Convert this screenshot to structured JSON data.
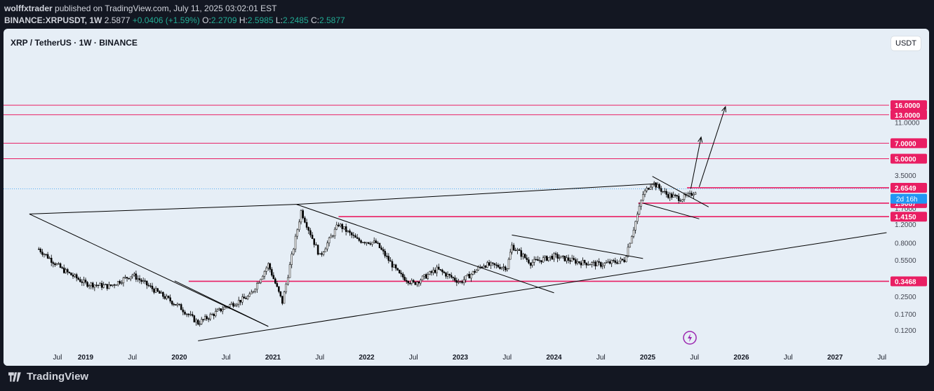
{
  "header": {
    "author": "wolffxtrader",
    "published": "published on TradingView.com, July 11, 2025 03:02:01 EST",
    "symbol": "BINANCE:XRPUSDT, 1W",
    "last": "2.5877",
    "change": "+0.0406 (+1.59%)",
    "o_label": "O:",
    "o": "2.2709",
    "h_label": "H:",
    "h": "2.5985",
    "l_label": "L:",
    "l": "2.2485",
    "c_label": "C:",
    "c": "2.5877"
  },
  "chart": {
    "title": "XRP / TetherUS · 1W · BINANCE",
    "currency_button": "USDT"
  },
  "footer": {
    "brand": "TradingView"
  },
  "colors": {
    "background": "#e6eef6",
    "level": "#e91e63",
    "candle": "#000000",
    "price_label": "#2196f3",
    "outer": "#131722"
  },
  "chart_data": {
    "type": "candlestick",
    "scale": "log",
    "x_ticks": [
      "Jul",
      "2019",
      "Jul",
      "2020",
      "Jul",
      "2021",
      "Jul",
      "2022",
      "Jul",
      "2023",
      "Jul",
      "2024",
      "Jul",
      "2025",
      "Jul",
      "2026",
      "Jul",
      "2027",
      "Jul"
    ],
    "y_ticks": [
      "11.0000",
      "3.5000",
      "1.7000",
      "1.2000",
      "0.8000",
      "0.5500",
      "0.2500",
      "0.1700",
      "0.1200"
    ],
    "levels": [
      {
        "value": 16.0,
        "label": "16.0000"
      },
      {
        "value": 13.0,
        "label": "13.0000"
      },
      {
        "value": 7.0,
        "label": "7.0000"
      },
      {
        "value": 5.0,
        "label": "5.0000"
      },
      {
        "value": 2.6549,
        "label": "2.6549"
      },
      {
        "value": 1.415,
        "label": "1.4150"
      },
      {
        "value": 0.3468,
        "label": "0.3468"
      }
    ],
    "current_price": {
      "value": 2.5877,
      "countdown": "2d 16h"
    },
    "hidden_level": {
      "value": 1.9,
      "label": "1.9087"
    },
    "weekly_closes_approx": [
      [
        2018.5,
        0.7
      ],
      [
        2018.75,
        0.45
      ],
      [
        2019.0,
        0.33
      ],
      [
        2019.25,
        0.31
      ],
      [
        2019.5,
        0.4
      ],
      [
        2019.75,
        0.28
      ],
      [
        2020.0,
        0.2
      ],
      [
        2020.2,
        0.14
      ],
      [
        2020.5,
        0.2
      ],
      [
        2020.75,
        0.25
      ],
      [
        2020.95,
        0.5
      ],
      [
        2021.1,
        0.22
      ],
      [
        2021.3,
        1.6
      ],
      [
        2021.5,
        0.6
      ],
      [
        2021.7,
        1.2
      ],
      [
        2021.9,
        0.85
      ],
      [
        2022.1,
        0.8
      ],
      [
        2022.35,
        0.4
      ],
      [
        2022.5,
        0.33
      ],
      [
        2022.75,
        0.45
      ],
      [
        2023.0,
        0.34
      ],
      [
        2023.25,
        0.5
      ],
      [
        2023.5,
        0.47
      ],
      [
        2023.55,
        0.75
      ],
      [
        2023.75,
        0.52
      ],
      [
        2024.0,
        0.6
      ],
      [
        2024.25,
        0.53
      ],
      [
        2024.5,
        0.5
      ],
      [
        2024.75,
        0.55
      ],
      [
        2024.85,
        1.1
      ],
      [
        2024.95,
        2.3
      ],
      [
        2025.05,
        3.0
      ],
      [
        2025.2,
        2.3
      ],
      [
        2025.35,
        2.1
      ],
      [
        2025.45,
        2.25
      ],
      [
        2025.53,
        2.5877
      ]
    ],
    "projection": [
      "7.0000",
      "16.0000"
    ]
  }
}
